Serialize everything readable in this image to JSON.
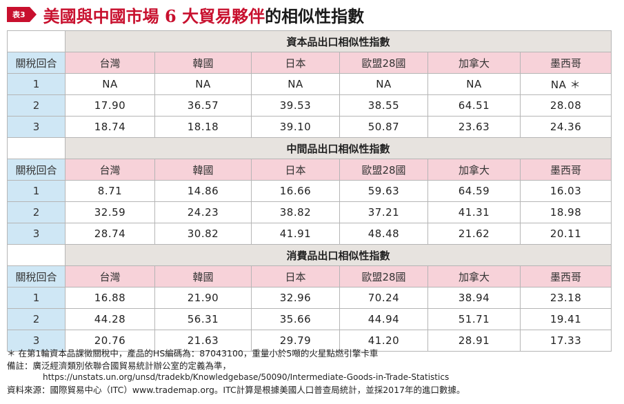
{
  "badge": "表3",
  "title_red": "美國與中國市場 6 大貿易夥伴",
  "title_dark": "的相似性指數",
  "row_label": "關稅回合",
  "columns": [
    "台灣",
    "韓國",
    "日本",
    "歐盟28國",
    "加拿大",
    "墨西哥"
  ],
  "sections": [
    {
      "title": "資本品出口相似性指數",
      "rows": [
        {
          "round": "1",
          "values": [
            "NA",
            "NA",
            "NA",
            "NA",
            "NA",
            "NA ＊"
          ]
        },
        {
          "round": "2",
          "values": [
            "17.90",
            "36.57",
            "39.53",
            "38.55",
            "64.51",
            "28.08"
          ]
        },
        {
          "round": "3",
          "values": [
            "18.74",
            "18.18",
            "39.10",
            "50.87",
            "23.63",
            "24.36"
          ]
        }
      ]
    },
    {
      "title": "中間品出口相似性指數",
      "rows": [
        {
          "round": "1",
          "values": [
            "8.71",
            "14.86",
            "16.66",
            "59.63",
            "64.59",
            "16.03"
          ]
        },
        {
          "round": "2",
          "values": [
            "32.59",
            "24.23",
            "38.82",
            "37.21",
            "41.31",
            "18.98"
          ]
        },
        {
          "round": "3",
          "values": [
            "28.74",
            "30.82",
            "41.91",
            "48.48",
            "21.62",
            "20.11"
          ]
        }
      ]
    },
    {
      "title": "消費品出口相似性指數",
      "rows": [
        {
          "round": "1",
          "values": [
            "16.88",
            "21.90",
            "32.96",
            "70.24",
            "38.94",
            "23.18"
          ]
        },
        {
          "round": "2",
          "values": [
            "44.28",
            "56.31",
            "35.66",
            "44.94",
            "51.71",
            "19.41"
          ]
        },
        {
          "round": "3",
          "values": [
            "20.76",
            "21.63",
            "29.79",
            "41.20",
            "28.91",
            "17.33"
          ]
        }
      ]
    }
  ],
  "notes": {
    "footnote": "＊ 在第1輪資本品課徵關稅中，產品的HS編碼為：87043100，重量小於5噸的火星點燃引擎卡車",
    "remark": "備註：廣泛經濟類別依聯合國貿易統計辦公室的定義為準，",
    "url": "https://unstats.un.org/unsd/tradekb/Knowledgebase/50090/Intermediate-Goods-in-Trade-Statistics",
    "source": "資料來源：國際貿易中心（ITC）www.trademap.org。ITC計算是根據美國人口普查局統計，並採2017年的進口數據。"
  },
  "colors": {
    "accent": "#c8102e",
    "header_pink": "#f7d2d9",
    "round_blue": "#cfe7f5",
    "section_gray": "#e7e3df"
  }
}
